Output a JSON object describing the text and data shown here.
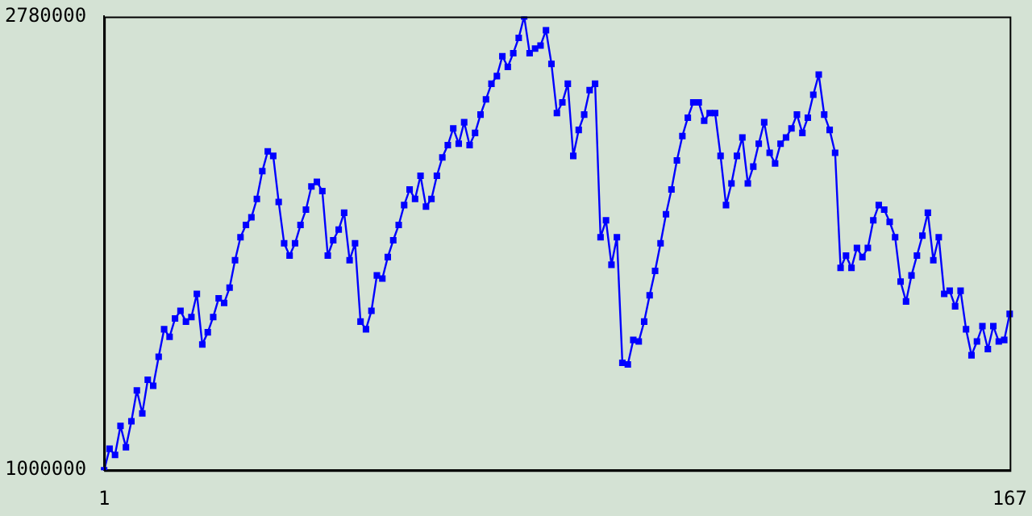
{
  "chart_data": {
    "type": "line",
    "categories": [
      "1",
      null,
      null,
      null,
      null,
      null,
      null,
      null,
      null,
      null,
      null,
      null,
      null,
      null,
      null,
      null,
      null,
      null,
      null,
      null,
      null,
      null,
      null,
      null,
      null,
      null,
      null,
      null,
      null,
      null,
      null,
      null,
      null,
      null,
      null,
      null,
      null,
      null,
      null,
      null,
      null,
      null,
      null,
      null,
      null,
      null,
      null,
      null,
      null,
      null,
      null,
      null,
      null,
      null,
      null,
      null,
      null,
      null,
      null,
      null,
      null,
      null,
      null,
      null,
      null,
      null,
      null,
      null,
      null,
      null,
      null,
      null,
      null,
      null,
      null,
      null,
      null,
      null,
      null,
      null,
      null,
      null,
      null,
      null,
      null,
      null,
      null,
      null,
      null,
      null,
      null,
      null,
      null,
      null,
      null,
      null,
      null,
      null,
      null,
      null,
      null,
      null,
      null,
      null,
      null,
      null,
      null,
      null,
      null,
      null,
      null,
      null,
      null,
      null,
      null,
      null,
      null,
      null,
      null,
      null,
      null,
      null,
      null,
      null,
      null,
      null,
      null,
      null,
      null,
      null,
      null,
      null,
      null,
      null,
      null,
      null,
      null,
      null,
      null,
      null,
      null,
      null,
      null,
      null,
      null,
      null,
      null,
      null,
      null,
      null,
      null,
      null,
      null,
      null,
      null,
      null,
      null,
      null,
      null,
      null,
      null,
      null,
      null,
      null,
      null,
      null,
      "167"
    ],
    "ylim": [
      1000000,
      2780000
    ],
    "yticks": [
      1000000,
      2780000
    ],
    "grid": false,
    "legend": false,
    "marker": "square",
    "line_style": "solid",
    "series": [
      {
        "color": "#0000ff",
        "values": [
          1000000,
          1084000,
          1060000,
          1174000,
          1090000,
          1192000,
          1313000,
          1223000,
          1355000,
          1331000,
          1445000,
          1553000,
          1523000,
          1595000,
          1625000,
          1583000,
          1601000,
          1692000,
          1493000,
          1541000,
          1601000,
          1674000,
          1656000,
          1716000,
          1824000,
          1914000,
          1962000,
          1992000,
          2064000,
          2173000,
          2251000,
          2233000,
          2052000,
          1890000,
          1842000,
          1890000,
          1962000,
          2022000,
          2113000,
          2131000,
          2095000,
          1842000,
          1902000,
          1944000,
          2010000,
          1824000,
          1890000,
          1583000,
          1553000,
          1625000,
          1764000,
          1752000,
          1836000,
          1902000,
          1962000,
          2040000,
          2101000,
          2064000,
          2155000,
          2034000,
          2064000,
          2155000,
          2227000,
          2275000,
          2341000,
          2281000,
          2365000,
          2275000,
          2323000,
          2395000,
          2455000,
          2516000,
          2546000,
          2624000,
          2582000,
          2636000,
          2696000,
          2780000,
          2636000,
          2654000,
          2666000,
          2726000,
          2594000,
          2401000,
          2443000,
          2516000,
          2233000,
          2335000,
          2395000,
          2491000,
          2516000,
          1914000,
          1980000,
          1806000,
          1914000,
          1421000,
          1415000,
          1511000,
          1505000,
          1583000,
          1686000,
          1782000,
          1890000,
          2004000,
          2101000,
          2215000,
          2311000,
          2383000,
          2443000,
          2443000,
          2371000,
          2401000,
          2401000,
          2233000,
          2040000,
          2125000,
          2233000,
          2305000,
          2125000,
          2191000,
          2281000,
          2365000,
          2245000,
          2203000,
          2281000,
          2305000,
          2341000,
          2395000,
          2323000,
          2383000,
          2473000,
          2552000,
          2395000,
          2335000,
          2245000,
          1794000,
          1842000,
          1794000,
          1872000,
          1836000,
          1872000,
          1980000,
          2040000,
          2022000,
          1974000,
          1914000,
          1740000,
          1662000,
          1764000,
          1842000,
          1920000,
          2010000,
          1824000,
          1914000,
          1692000,
          1704000,
          1643000,
          1704000,
          1553000,
          1451000,
          1505000,
          1565000,
          1475000,
          1565000,
          1505000,
          1511000,
          1613000
        ]
      }
    ]
  }
}
